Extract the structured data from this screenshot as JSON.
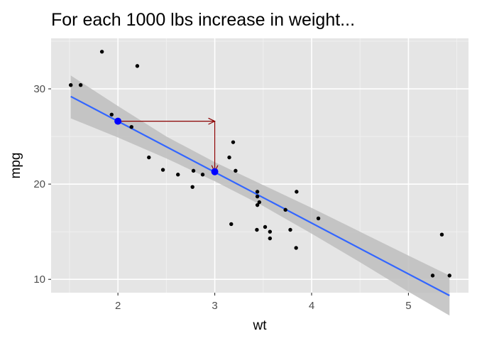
{
  "chart_data": {
    "type": "scatter",
    "title": "For each 1000 lbs increase in weight...",
    "xlabel": "wt",
    "ylabel": "mpg",
    "xlim": [
      1.31,
      5.62
    ],
    "ylim": [
      8.6,
      35.3
    ],
    "x_ticks": [
      2,
      3,
      4,
      5
    ],
    "y_ticks": [
      10,
      20,
      30
    ],
    "grid": true,
    "points": [
      {
        "x": 1.513,
        "y": 30.4
      },
      {
        "x": 1.615,
        "y": 30.4
      },
      {
        "x": 1.835,
        "y": 33.9
      },
      {
        "x": 1.935,
        "y": 27.3
      },
      {
        "x": 2.14,
        "y": 26.0
      },
      {
        "x": 2.2,
        "y": 32.4
      },
      {
        "x": 2.32,
        "y": 22.8
      },
      {
        "x": 2.465,
        "y": 21.5
      },
      {
        "x": 2.62,
        "y": 21.0
      },
      {
        "x": 2.77,
        "y": 19.7
      },
      {
        "x": 2.78,
        "y": 21.4
      },
      {
        "x": 2.875,
        "y": 21.0
      },
      {
        "x": 3.15,
        "y": 22.8
      },
      {
        "x": 3.17,
        "y": 15.8
      },
      {
        "x": 3.19,
        "y": 24.4
      },
      {
        "x": 3.215,
        "y": 21.4
      },
      {
        "x": 3.435,
        "y": 15.2
      },
      {
        "x": 3.44,
        "y": 18.7
      },
      {
        "x": 3.44,
        "y": 19.2
      },
      {
        "x": 3.44,
        "y": 17.8
      },
      {
        "x": 3.46,
        "y": 18.1
      },
      {
        "x": 3.52,
        "y": 15.5
      },
      {
        "x": 3.57,
        "y": 14.3
      },
      {
        "x": 3.57,
        "y": 15.0
      },
      {
        "x": 3.73,
        "y": 17.3
      },
      {
        "x": 3.78,
        "y": 15.2
      },
      {
        "x": 3.84,
        "y": 13.3
      },
      {
        "x": 3.845,
        "y": 19.2
      },
      {
        "x": 4.07,
        "y": 16.4
      },
      {
        "x": 5.25,
        "y": 10.4
      },
      {
        "x": 5.345,
        "y": 14.7
      },
      {
        "x": 5.424,
        "y": 10.4
      }
    ],
    "fit_line": {
      "x": [
        1.513,
        5.424
      ],
      "y": [
        29.2,
        8.3
      ],
      "color": "#3366ff"
    },
    "confidence_band": {
      "x": [
        1.513,
        2.0,
        2.5,
        3.0,
        3.5,
        4.0,
        4.5,
        5.0,
        5.424
      ],
      "upper": [
        31.4,
        28.2,
        25.0,
        22.3,
        19.9,
        17.5,
        15.0,
        12.5,
        10.4
      ],
      "lower": [
        26.9,
        24.9,
        22.7,
        20.3,
        17.7,
        14.8,
        11.8,
        8.7,
        6.2
      ],
      "color": "#bebebe"
    },
    "highlight_points": [
      {
        "x": 2,
        "y": 26.6
      },
      {
        "x": 3,
        "y": 21.3
      }
    ],
    "highlight_color": "#0000ff",
    "annotation_arrows": [
      {
        "from": {
          "x": 2,
          "y": 26.6
        },
        "to": {
          "x": 3,
          "y": 26.6
        }
      },
      {
        "from": {
          "x": 3,
          "y": 26.6
        },
        "to": {
          "x": 3,
          "y": 21.3
        }
      }
    ],
    "arrow_color": "#8b0000",
    "panel_background": "#e5e5e5",
    "point_color": "#000000"
  }
}
